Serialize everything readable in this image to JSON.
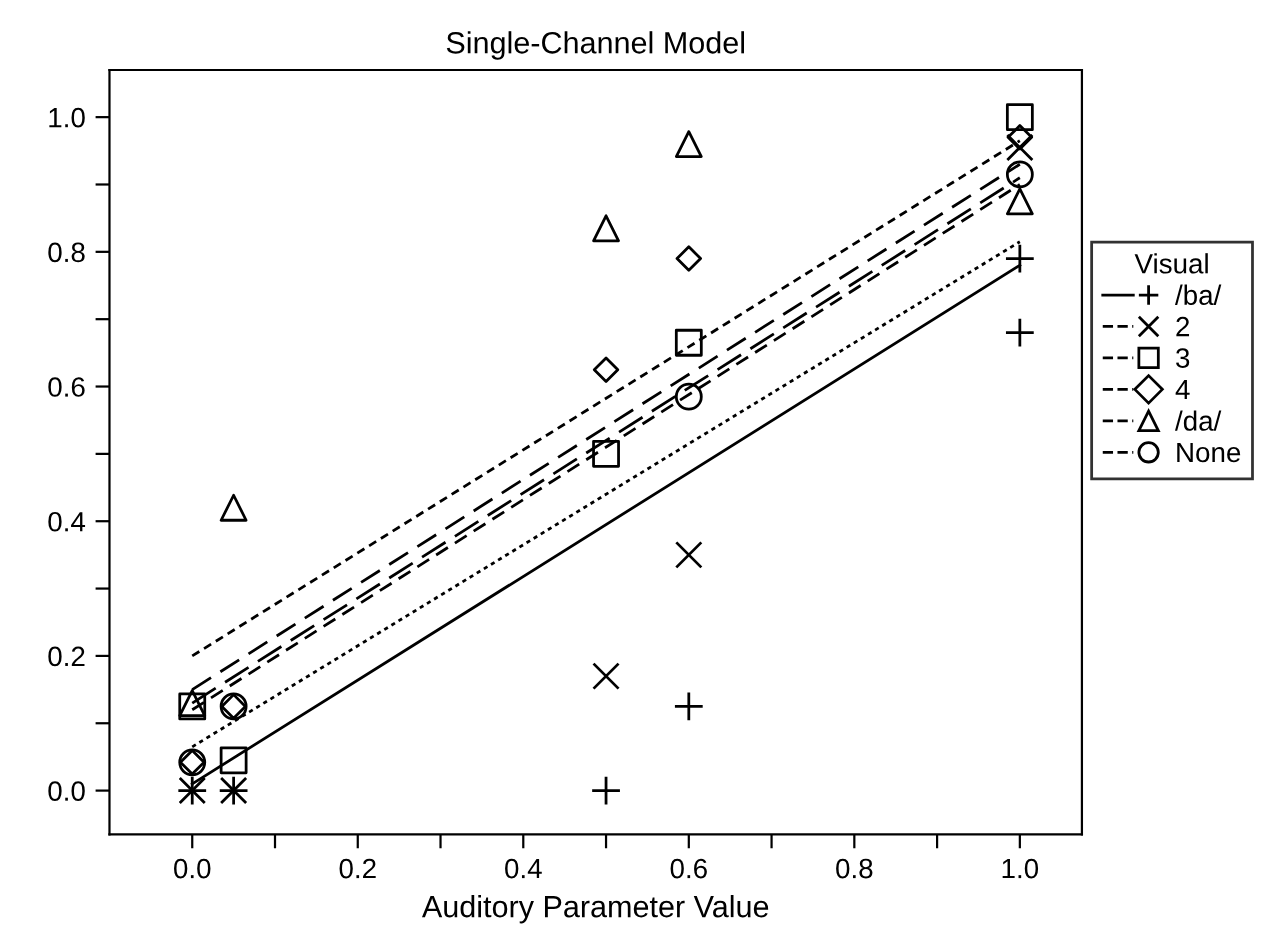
{
  "chart_data": {
    "type": "scatter",
    "title": "Single-Channel Model",
    "xlabel": "Auditory Parameter Value",
    "legend_title": "Visual",
    "legend": "right",
    "xlim": [
      -0.1,
      1.075
    ],
    "ylim": [
      -0.065,
      1.07
    ],
    "xticks": [
      {
        "value": 0,
        "label": "0.0"
      },
      {
        "value": 0.1,
        "label": null
      },
      {
        "value": 0.2,
        "label": "0.2"
      },
      {
        "value": 0.3,
        "label": null
      },
      {
        "value": 0.4,
        "label": "0.4"
      },
      {
        "value": 0.5,
        "label": null
      },
      {
        "value": 0.6,
        "label": "0.6"
      },
      {
        "value": 0.7,
        "label": null
      },
      {
        "value": 0.8,
        "label": "0.8"
      },
      {
        "value": 0.9,
        "label": null
      },
      {
        "value": 1,
        "label": "1.0"
      }
    ],
    "yticks": [
      {
        "value": 0,
        "label": "0.0"
      },
      {
        "value": 0.1,
        "label": null
      },
      {
        "value": 0.2,
        "label": "0.2"
      },
      {
        "value": 0.3,
        "label": null
      },
      {
        "value": 0.4,
        "label": "0.4"
      },
      {
        "value": 0.5,
        "label": null
      },
      {
        "value": 0.6,
        "label": "0.6"
      },
      {
        "value": 0.7,
        "label": null
      },
      {
        "value": 0.8,
        "label": "0.8"
      },
      {
        "value": 0.9,
        "label": null
      },
      {
        "value": 1,
        "label": "1.0"
      }
    ],
    "grid": false,
    "series": [
      {
        "name": "/ba/",
        "color": "#000000",
        "marker": "plus",
        "x": [
          0,
          0.05,
          0.5,
          0.6,
          1.0,
          1.0
        ],
        "values": [
          0,
          0,
          0,
          0.125,
          0.79,
          0.68
        ]
      },
      {
        "name": "2",
        "color": "#000000",
        "marker": "cross",
        "x": [
          0,
          0.05,
          0.5,
          0.6,
          1.0
        ],
        "values": [
          0,
          0,
          0.17,
          0.35,
          0.955
        ]
      },
      {
        "name": "3",
        "color": "#000000",
        "marker": "square",
        "x": [
          0,
          0.05,
          0.5,
          0.6,
          1.0
        ],
        "values": [
          0.125,
          0.045,
          0.5,
          0.665,
          1.0
        ]
      },
      {
        "name": "4",
        "color": "#000000",
        "marker": "diamond",
        "x": [
          0,
          0.05,
          0.5,
          0.6,
          1.0
        ],
        "values": [
          0.042,
          0.125,
          0.625,
          0.79,
          0.97
        ]
      },
      {
        "name": "/da/",
        "color": "#000000",
        "marker": "triangle",
        "x": [
          0,
          0.05,
          0.5,
          0.6,
          1.0
        ],
        "values": [
          0.13,
          0.42,
          0.835,
          0.96,
          0.875
        ]
      },
      {
        "name": "None",
        "color": "#000000",
        "marker": "circle",
        "x": [
          0,
          0.05,
          0.5,
          0.6,
          1.0
        ],
        "values": [
          0.042,
          0.125,
          null,
          0.585,
          0.915
        ]
      },
      {
        "type": "line",
        "color": "#000000",
        "line_style": "solid",
        "x": [
          0,
          1
        ],
        "values": [
          0.01,
          0.78
        ]
      },
      {
        "type": "line",
        "color": "#000000",
        "line_style": "dotted",
        "x": [
          0,
          1
        ],
        "values": [
          0.065,
          0.815
        ]
      },
      {
        "type": "line",
        "color": "#000000",
        "line_style": "dashed",
        "x": [
          0,
          1
        ],
        "values": [
          0.12,
          0.9
        ]
      },
      {
        "type": "line",
        "color": "#000000",
        "line_style": "dashed",
        "x": [
          0,
          1
        ],
        "values": [
          0.15,
          0.93
        ]
      },
      {
        "type": "line",
        "color": "#000000",
        "line_style": "dashed",
        "x": [
          0,
          1
        ],
        "values": [
          0.2,
          0.965
        ]
      },
      {
        "type": "line",
        "color": "#000000",
        "line_style": "dashed",
        "x": [
          0,
          1
        ],
        "values": [
          0.13,
          0.91
        ]
      }
    ]
  }
}
